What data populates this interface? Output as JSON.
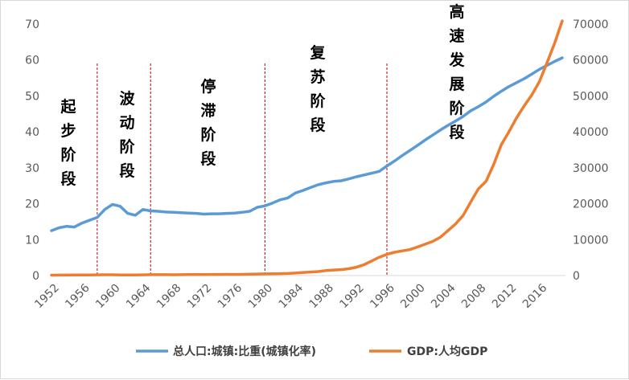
{
  "chart_data": {
    "type": "line",
    "x": [
      1952,
      1953,
      1954,
      1955,
      1956,
      1957,
      1958,
      1959,
      1960,
      1961,
      1962,
      1963,
      1964,
      1965,
      1966,
      1967,
      1968,
      1969,
      1970,
      1971,
      1972,
      1973,
      1974,
      1975,
      1976,
      1977,
      1978,
      1979,
      1980,
      1981,
      1982,
      1983,
      1984,
      1985,
      1986,
      1987,
      1988,
      1989,
      1990,
      1991,
      1992,
      1993,
      1994,
      1995,
      1996,
      1997,
      1998,
      1999,
      2000,
      2001,
      2002,
      2003,
      2004,
      2005,
      2006,
      2007,
      2008,
      2009,
      2010,
      2011,
      2012,
      2013,
      2014,
      2015,
      2016,
      2017,
      2018,
      2019
    ],
    "x_ticks": [
      "1952",
      "1956",
      "1960",
      "1964",
      "1968",
      "1972",
      "1976",
      "1980",
      "1984",
      "1988",
      "1992",
      "1996",
      "2000",
      "2004",
      "2008",
      "2012",
      "2016"
    ],
    "y_left": {
      "lim": [
        0,
        70
      ],
      "ticks": [
        "0",
        "10",
        "20",
        "30",
        "40",
        "50",
        "60",
        "70"
      ]
    },
    "y_right": {
      "lim": [
        0,
        70000
      ],
      "ticks": [
        "0",
        "10000",
        "20000",
        "30000",
        "40000",
        "50000",
        "60000",
        "70000"
      ]
    },
    "series": [
      {
        "name": "总人口:城镇:比重(城镇化率)",
        "axis": "left",
        "color": "#5B9BD5",
        "values": [
          12.5,
          13.3,
          13.7,
          13.5,
          14.6,
          15.4,
          16.2,
          18.4,
          19.8,
          19.3,
          17.3,
          16.8,
          18.4,
          18.0,
          17.9,
          17.7,
          17.6,
          17.5,
          17.4,
          17.3,
          17.1,
          17.2,
          17.2,
          17.3,
          17.4,
          17.6,
          17.9,
          19.0,
          19.4,
          20.2,
          21.1,
          21.6,
          23.0,
          23.7,
          24.5,
          25.3,
          25.8,
          26.2,
          26.4,
          26.9,
          27.5,
          28.0,
          28.5,
          29.0,
          30.5,
          31.9,
          33.4,
          34.8,
          36.2,
          37.7,
          39.1,
          40.5,
          41.8,
          43.0,
          44.3,
          45.9,
          47.0,
          48.3,
          49.9,
          51.3,
          52.6,
          53.7,
          54.8,
          56.1,
          57.4,
          58.5,
          59.6,
          60.6
        ]
      },
      {
        "name": "GDP:人均GDP",
        "axis": "right",
        "color": "#ED7D31",
        "values": [
          119,
          142,
          144,
          150,
          166,
          168,
          200,
          216,
          218,
          185,
          173,
          181,
          208,
          240,
          254,
          235,
          222,
          243,
          276,
          285,
          291,
          311,
          312,
          327,
          315,
          341,
          385,
          423,
          468,
          497,
          533,
          592,
          700,
          866,
          973,
          1123,
          1378,
          1536,
          1663,
          1912,
          2334,
          3027,
          4081,
          5091,
          5898,
          6481,
          6860,
          7229,
          7942,
          8717,
          9506,
          10666,
          12487,
          14368,
          16738,
          20505,
          24121,
          26222,
          30876,
          36403,
          40007,
          43852,
          47203,
          50251,
          53980,
          59201,
          64644,
          70892
        ]
      }
    ]
  },
  "stages": [
    {
      "label": "起步阶段"
    },
    {
      "label": "波动阶段"
    },
    {
      "label": "停滞阶段"
    },
    {
      "label": "复苏阶段"
    },
    {
      "label": "高速发展阶段"
    }
  ],
  "legend": [
    {
      "label": "总人口:城镇:比重(城镇化率)",
      "color": "#5B9BD5"
    },
    {
      "label": "GDP:人均GDP",
      "color": "#ED7D31"
    }
  ]
}
